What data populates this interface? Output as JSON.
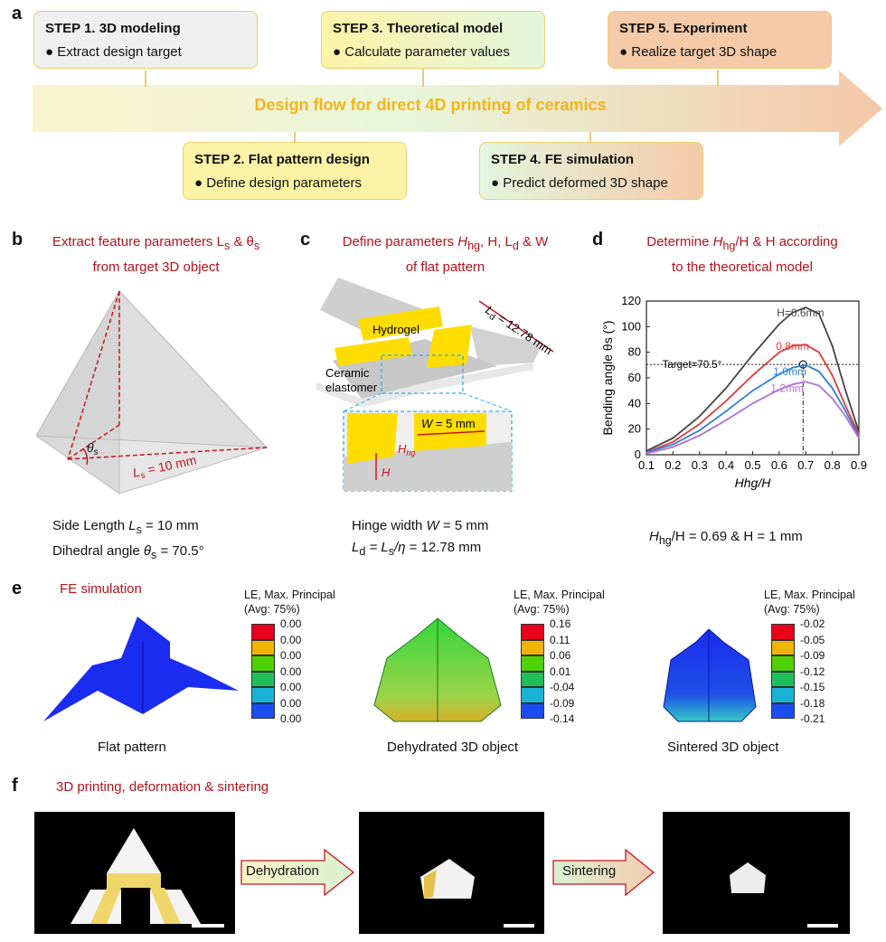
{
  "panel_a": {
    "label": "a",
    "banner": "Design flow for direct 4D printing of ceramics",
    "steps": [
      {
        "title": "STEP 1. 3D modeling",
        "bullet": "Extract design target"
      },
      {
        "title": "STEP 2. Flat pattern design",
        "bullet": "Define design parameters"
      },
      {
        "title": "STEP 3. Theoretical model",
        "bullet": "Calculate parameter values"
      },
      {
        "title": "STEP 4. FE simulation",
        "bullet": "Predict deformed 3D shape"
      },
      {
        "title": "STEP 5. Experiment",
        "bullet": "Realize target 3D shape"
      }
    ]
  },
  "panel_b": {
    "label": "b",
    "title_line1": "Extract feature parameters L",
    "title_sub1": "s",
    "title_mid": " & θ",
    "title_sub2": "s",
    "title_line2": "from target 3D object",
    "theta_label": "θ",
    "theta_sub": "s",
    "ls_label": "L",
    "ls_sub": "s",
    "ls_value": " = 10 mm",
    "cap1_pre": "Side Length ",
    "cap1_var": "L",
    "cap1_sub": "s",
    "cap1_post": " = 10 mm",
    "cap2_pre": "Dihedral angle ",
    "cap2_var": "θ",
    "cap2_sub": "s",
    "cap2_post": " = 70.5°"
  },
  "panel_c": {
    "label": "c",
    "title_pre": "Define parameters ",
    "h": "H",
    "hg": "hg",
    "title_mid": ", H, L",
    "d": "d",
    "title_end": " & W",
    "title_line2": "of flat pattern",
    "hydrogel": "Hydrogel",
    "ceramic1": "Ceramic",
    "ceramic2": "elastomer",
    "ld_label": "L",
    "ld_sub": "d",
    "ld_val": " = 12.78 mm",
    "w_label": "W",
    "w_val": " = 5 mm",
    "hhg_label": "H",
    "hhg_sub": "hg",
    "h_label": "H",
    "cap1_pre": "Hinge width ",
    "cap1_var": "W",
    "cap1_post": " = 5 mm",
    "cap2_var": "L",
    "cap2_sub": "d",
    "cap2_mid": " = L",
    "cap2_sub2": "s",
    "cap2_eta": "/η",
    "cap2_post": " = 12.78 mm"
  },
  "panel_d": {
    "label": "d",
    "title_pre": "Determine ",
    "title_h": "H",
    "title_hg": "hg",
    "title_post": "/H & H according",
    "title_line2": "to the theoretical model",
    "result_h": "H",
    "result_hg": "hg",
    "result_post": "/H = 0.69 & H = 1 mm"
  },
  "chart_data": {
    "type": "line",
    "title": "",
    "xlabel": "Hhg/H",
    "ylabel": "Bending angle θs (°)",
    "xlim": [
      0.1,
      0.9
    ],
    "ylim": [
      0,
      120
    ],
    "xticks": [
      "0.1",
      "0.2",
      "0.3",
      "0.4",
      "0.5",
      "0.6",
      "0.7",
      "0.8",
      "0.9"
    ],
    "yticks": [
      "0",
      "20",
      "40",
      "60",
      "80",
      "100",
      "120"
    ],
    "target_label": "Target=70.5°",
    "target_value": 70.5,
    "selected_x": 0.69,
    "series": [
      {
        "name": "H=0.6mm",
        "color": "#444444",
        "x": [
          0.1,
          0.2,
          0.3,
          0.4,
          0.5,
          0.6,
          0.65,
          0.7,
          0.75,
          0.8,
          0.85,
          0.9
        ],
        "values": [
          3,
          13,
          30,
          52,
          78,
          102,
          111,
          115,
          110,
          85,
          50,
          18
        ]
      },
      {
        "name": "0.8mm",
        "color": "#e23a3a",
        "x": [
          0.1,
          0.2,
          0.3,
          0.4,
          0.5,
          0.6,
          0.65,
          0.7,
          0.75,
          0.8,
          0.85,
          0.9
        ],
        "values": [
          2,
          10,
          24,
          42,
          62,
          80,
          85,
          86,
          80,
          62,
          38,
          16
        ]
      },
      {
        "name": "1.0mm",
        "color": "#2f7fd6",
        "x": [
          0.1,
          0.2,
          0.3,
          0.4,
          0.5,
          0.6,
          0.65,
          0.7,
          0.75,
          0.8,
          0.85,
          0.9
        ],
        "values": [
          2,
          8,
          19,
          34,
          50,
          63,
          68,
          70,
          65,
          52,
          34,
          14
        ]
      },
      {
        "name": "1.2mm",
        "color": "#b36fd6",
        "x": [
          0.1,
          0.2,
          0.3,
          0.4,
          0.5,
          0.6,
          0.65,
          0.7,
          0.75,
          0.8,
          0.85,
          0.9
        ],
        "values": [
          1,
          6,
          15,
          27,
          40,
          51,
          55,
          57,
          54,
          44,
          30,
          13
        ]
      }
    ]
  },
  "panel_e": {
    "label": "e",
    "title": "FE simulation",
    "sims": [
      {
        "caption": "Flat pattern",
        "legend1": "LE, Max. Principal",
        "legend2": "(Avg: 75%)",
        "values": [
          "0.00",
          "0.00",
          "0.00",
          "0.00",
          "0.00",
          "0.00",
          "0.00"
        ]
      },
      {
        "caption": "Dehydrated 3D object",
        "legend1": "LE, Max. Principal",
        "legend2": "(Avg: 75%)",
        "values": [
          "0.16",
          "0.11",
          "0.06",
          "0.01",
          "-0.04",
          "-0.09",
          "-0.14"
        ]
      },
      {
        "caption": "Sintered 3D object",
        "legend1": "LE, Max. Principal",
        "legend2": "(Avg: 75%)",
        "values": [
          "-0.02",
          "-0.05",
          "-0.09",
          "-0.12",
          "-0.15",
          "-0.18",
          "-0.21"
        ]
      }
    ],
    "colors": [
      "#e8001a",
      "#f0b400",
      "#4fd100",
      "#1fbf5a",
      "#19b3d8",
      "#1a4ef0"
    ]
  },
  "panel_f": {
    "label": "f",
    "title": "3D printing, deformation & sintering",
    "arrow1": "Dehydration",
    "arrow2": "Sintering"
  }
}
